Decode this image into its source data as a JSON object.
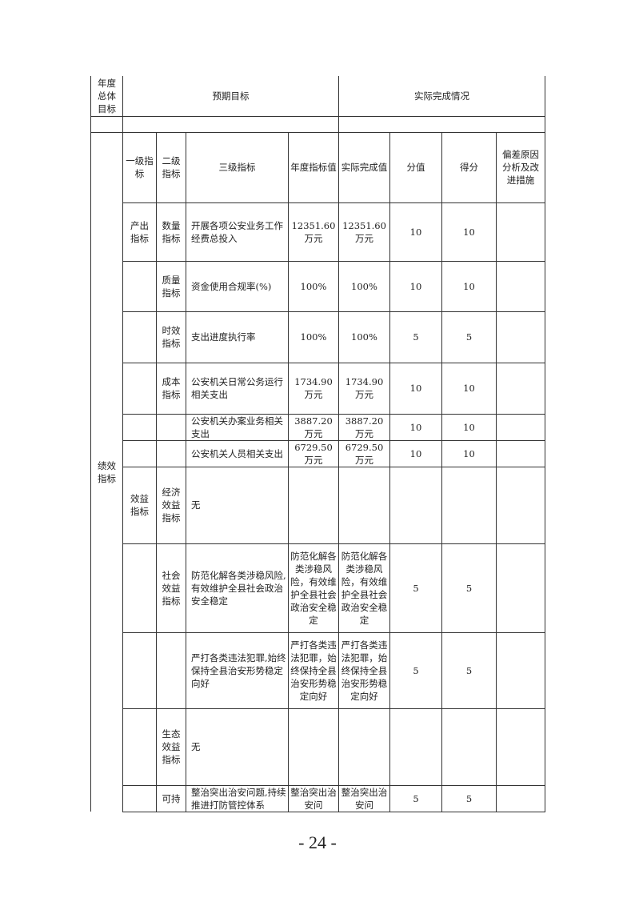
{
  "header": {
    "annual_goal_label": "年度总体目标",
    "expected_label": "预期目标",
    "actual_label": "实际完成情况"
  },
  "perf_label": "绩效指标",
  "columns": [
    "一级指标",
    "二级指标",
    "三级指标",
    "年度指标值",
    "实际完成值",
    "分值",
    "得分",
    "偏差原因分析及改进措施"
  ],
  "rows": [
    {
      "l1": "产出指标",
      "l2": "数量指标",
      "l3": "开展各项公安业务工作经费总投入",
      "target": "12351.60万元",
      "actual": "12351.60万元",
      "score_value": "10",
      "score": "10",
      "note": ""
    },
    {
      "l1": "",
      "l2": "质量指标",
      "l3": "资金使用合规率(%)",
      "target": "100%",
      "actual": "100%",
      "score_value": "10",
      "score": "10",
      "note": ""
    },
    {
      "l1": "",
      "l2": "时效指标",
      "l3": "支出进度执行率",
      "target": "100%",
      "actual": "100%",
      "score_value": "5",
      "score": "5",
      "note": ""
    },
    {
      "l1": "",
      "l2": "成本指标",
      "l3": "公安机关日常公务运行相关支出",
      "target": "1734.90万元",
      "actual": "1734.90万元",
      "score_value": "10",
      "score": "10",
      "note": ""
    },
    {
      "l1": "",
      "l2": "",
      "l3": "公安机关办案业务相关支出",
      "target": "3887.20万元",
      "actual": "3887.20万元",
      "score_value": "10",
      "score": "10",
      "note": ""
    },
    {
      "l1": "",
      "l2": "",
      "l3": "公安机关人员相关支出",
      "target": "6729.50万元",
      "actual": "6729.50万元",
      "score_value": "10",
      "score": "10",
      "note": ""
    },
    {
      "l1": "效益指标",
      "l2": "经济效益指标",
      "l3": "无",
      "target": "",
      "actual": "",
      "score_value": "",
      "score": "",
      "note": ""
    },
    {
      "l1": "",
      "l2": "社会效益指标",
      "l3": "防范化解各类涉稳风险,有效维护全县社会政治安全稳定",
      "target": "防范化解各类涉稳风险，有效维护全县社会政治安全稳定",
      "actual": "防范化解各类涉稳风险，有效维护全县社会政治安全稳定",
      "score_value": "5",
      "score": "5",
      "note": ""
    },
    {
      "l1": "",
      "l2": "",
      "l3": "严打各类违法犯罪,始终保持全县治安形势稳定向好",
      "target": "严打各类违法犯罪，始终保持全县治安形势稳定向好",
      "actual": "严打各类违法犯罪，始终保持全县治安形势稳定向好",
      "score_value": "5",
      "score": "5",
      "note": ""
    },
    {
      "l1": "",
      "l2": "生态效益指标",
      "l3": "无",
      "target": "",
      "actual": "",
      "score_value": "",
      "score": "",
      "note": ""
    },
    {
      "l1": "",
      "l2": "可持",
      "l3": "整治突出治安问题,持续推进打防管控体系",
      "target": "整治突出治安问",
      "actual": "整治突出治安问",
      "score_value": "5",
      "score": "5",
      "note": ""
    }
  ],
  "page_number": "- 24 -"
}
